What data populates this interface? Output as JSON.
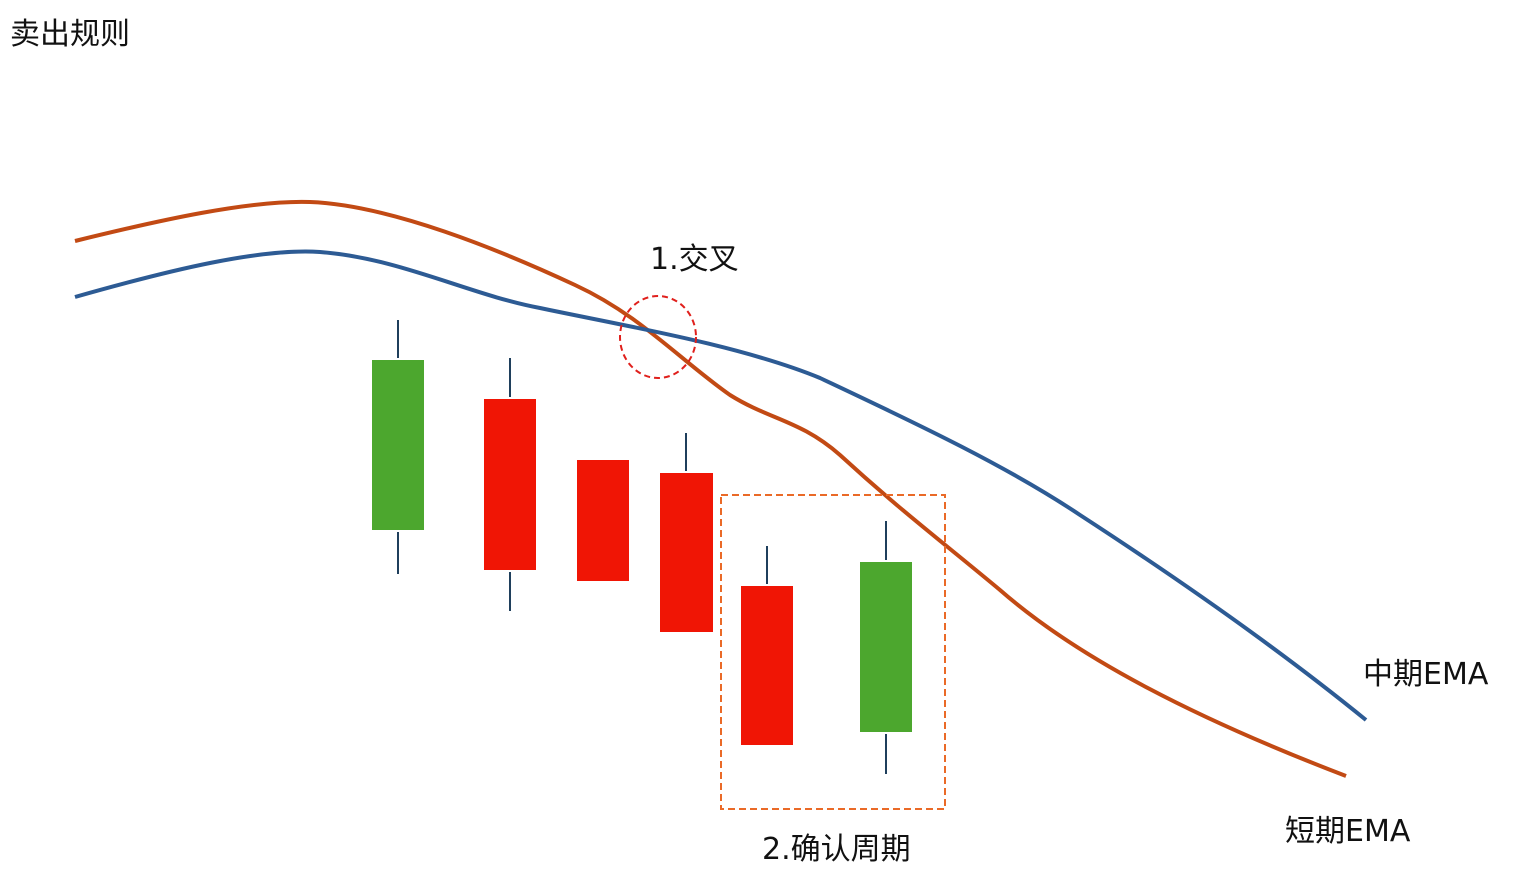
{
  "title": "卖出规则",
  "annotations": {
    "cross": "1.交叉",
    "confirm": "2.确认周期"
  },
  "lines": {
    "medium": {
      "label": "中期EMA",
      "color": "#2d5b94"
    },
    "short": {
      "label": "短期EMA",
      "color": "#c24a14"
    }
  },
  "colors": {
    "bullish": "#4ca72e",
    "bearish": "#f01505",
    "wick": "#1f3f5c",
    "cross_marker": "#e0201c",
    "confirm_box": "#ea6a28"
  },
  "candles": [
    {
      "type": "bullish"
    },
    {
      "type": "bearish"
    },
    {
      "type": "bearish"
    },
    {
      "type": "bearish"
    },
    {
      "type": "bearish"
    },
    {
      "type": "bullish"
    }
  ]
}
